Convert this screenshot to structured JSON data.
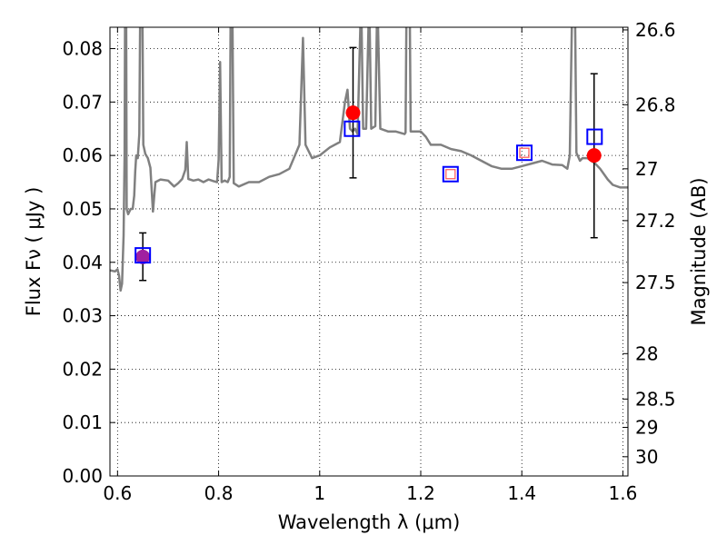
{
  "chart_data": {
    "type": "scatter",
    "xlabel": "Wavelength  λ (μm)",
    "ylabel": "Flux  Fν  ( μJy )",
    "ylabel_right": "Magnitude (AB)",
    "xlim": [
      0.585,
      1.61
    ],
    "ylim": [
      0.0,
      0.084
    ],
    "grid": true,
    "x_ticks": [
      {
        "value": 0.6,
        "label": "0.6"
      },
      {
        "value": 0.8,
        "label": "0.8"
      },
      {
        "value": 1.0,
        "label": "1"
      },
      {
        "value": 1.2,
        "label": "1.2"
      },
      {
        "value": 1.4,
        "label": "1.4"
      },
      {
        "value": 1.6,
        "label": "1.6"
      }
    ],
    "y_ticks": [
      {
        "value": 0.0,
        "label": "0.00"
      },
      {
        "value": 0.01,
        "label": "0.01"
      },
      {
        "value": 0.02,
        "label": "0.02"
      },
      {
        "value": 0.03,
        "label": "0.03"
      },
      {
        "value": 0.04,
        "label": "0.04"
      },
      {
        "value": 0.05,
        "label": "0.05"
      },
      {
        "value": 0.06,
        "label": "0.06"
      },
      {
        "value": 0.07,
        "label": "0.07"
      },
      {
        "value": 0.08,
        "label": "0.08"
      }
    ],
    "right_ticks": [
      {
        "flux": 0.0835,
        "label": "26.6"
      },
      {
        "flux": 0.0695,
        "label": "26.8"
      },
      {
        "flux": 0.0575,
        "label": "27"
      },
      {
        "flux": 0.0478,
        "label": "27.2"
      },
      {
        "flux": 0.0362,
        "label": "27.5"
      },
      {
        "flux": 0.0229,
        "label": "28"
      },
      {
        "flux": 0.0144,
        "label": "28.5"
      },
      {
        "flux": 0.0091,
        "label": "29"
      },
      {
        "flux": 0.0036,
        "label": "30"
      }
    ],
    "series": [
      {
        "kind": "line",
        "color": "#808080",
        "points": [
          [
            0.585,
            0.0385
          ],
          [
            0.595,
            0.0383
          ],
          [
            0.6,
            0.0387
          ],
          [
            0.603,
            0.0375
          ],
          [
            0.606,
            0.0347
          ],
          [
            0.609,
            0.036
          ],
          [
            0.612,
            0.045
          ],
          [
            0.614,
            0.06
          ],
          [
            0.615,
            0.09
          ],
          [
            0.617,
            0.09
          ],
          [
            0.618,
            0.05
          ],
          [
            0.621,
            0.049
          ],
          [
            0.626,
            0.05
          ],
          [
            0.63,
            0.05
          ],
          [
            0.633,
            0.0525
          ],
          [
            0.635,
            0.057
          ],
          [
            0.637,
            0.06
          ],
          [
            0.64,
            0.0595
          ],
          [
            0.643,
            0.064
          ],
          [
            0.645,
            0.09
          ],
          [
            0.649,
            0.09
          ],
          [
            0.651,
            0.062
          ],
          [
            0.655,
            0.0603
          ],
          [
            0.66,
            0.0595
          ],
          [
            0.665,
            0.0577
          ],
          [
            0.67,
            0.0495
          ],
          [
            0.675,
            0.055
          ],
          [
            0.685,
            0.0555
          ],
          [
            0.7,
            0.0553
          ],
          [
            0.712,
            0.0542
          ],
          [
            0.72,
            0.0548
          ],
          [
            0.728,
            0.0556
          ],
          [
            0.734,
            0.0573
          ],
          [
            0.737,
            0.0625
          ],
          [
            0.74,
            0.0556
          ],
          [
            0.75,
            0.0553
          ],
          [
            0.76,
            0.0555
          ],
          [
            0.77,
            0.055
          ],
          [
            0.78,
            0.0555
          ],
          [
            0.79,
            0.0552
          ],
          [
            0.797,
            0.055
          ],
          [
            0.8,
            0.0592
          ],
          [
            0.803,
            0.0775
          ],
          [
            0.806,
            0.055
          ],
          [
            0.812,
            0.0553
          ],
          [
            0.818,
            0.055
          ],
          [
            0.822,
            0.056
          ],
          [
            0.824,
            0.09
          ],
          [
            0.827,
            0.09
          ],
          [
            0.83,
            0.0548
          ],
          [
            0.84,
            0.0542
          ],
          [
            0.86,
            0.055
          ],
          [
            0.88,
            0.055
          ],
          [
            0.9,
            0.056
          ],
          [
            0.92,
            0.0565
          ],
          [
            0.94,
            0.0575
          ],
          [
            0.96,
            0.062
          ],
          [
            0.967,
            0.082
          ],
          [
            0.972,
            0.062
          ],
          [
            0.985,
            0.0595
          ],
          [
            1.0,
            0.06
          ],
          [
            1.02,
            0.0615
          ],
          [
            1.04,
            0.0625
          ],
          [
            1.05,
            0.07
          ],
          [
            1.055,
            0.0723
          ],
          [
            1.06,
            0.065
          ],
          [
            1.065,
            0.0645
          ],
          [
            1.07,
            0.065
          ],
          [
            1.075,
            0.064
          ],
          [
            1.082,
            0.09
          ],
          [
            1.086,
            0.065
          ],
          [
            1.092,
            0.065
          ],
          [
            1.098,
            0.09
          ],
          [
            1.102,
            0.065
          ],
          [
            1.11,
            0.0655
          ],
          [
            1.114,
            0.09
          ],
          [
            1.12,
            0.065
          ],
          [
            1.135,
            0.0645
          ],
          [
            1.15,
            0.0645
          ],
          [
            1.168,
            0.064
          ],
          [
            1.17,
            0.0643
          ],
          [
            1.172,
            0.09
          ],
          [
            1.178,
            0.09
          ],
          [
            1.18,
            0.0645
          ],
          [
            1.19,
            0.0645
          ],
          [
            1.2,
            0.0645
          ],
          [
            1.21,
            0.0635
          ],
          [
            1.22,
            0.062
          ],
          [
            1.24,
            0.062
          ],
          [
            1.26,
            0.0612
          ],
          [
            1.28,
            0.0608
          ],
          [
            1.3,
            0.06
          ],
          [
            1.32,
            0.059
          ],
          [
            1.34,
            0.058
          ],
          [
            1.36,
            0.0575
          ],
          [
            1.38,
            0.0575
          ],
          [
            1.4,
            0.058
          ],
          [
            1.42,
            0.0585
          ],
          [
            1.44,
            0.059
          ],
          [
            1.46,
            0.0583
          ],
          [
            1.48,
            0.0582
          ],
          [
            1.49,
            0.0575
          ],
          [
            1.495,
            0.06
          ],
          [
            1.5,
            0.09
          ],
          [
            1.505,
            0.09
          ],
          [
            1.508,
            0.0605
          ],
          [
            1.515,
            0.059
          ],
          [
            1.52,
            0.0595
          ],
          [
            1.53,
            0.0595
          ],
          [
            1.545,
            0.0585
          ],
          [
            1.555,
            0.0575
          ],
          [
            1.57,
            0.0555
          ],
          [
            1.58,
            0.0545
          ],
          [
            1.595,
            0.054
          ],
          [
            1.61,
            0.054
          ]
        ]
      },
      {
        "kind": "filled-circles",
        "points": [
          {
            "x": 0.65,
            "y": 0.041,
            "color": "#a020a0"
          },
          {
            "x": 1.066,
            "y": 0.068,
            "color": "#ff0000"
          },
          {
            "x": 1.543,
            "y": 0.06,
            "color": "#ff0000"
          }
        ]
      },
      {
        "kind": "error-bars",
        "color": "#000000",
        "points": [
          {
            "x": 0.65,
            "y": 0.041,
            "low": 0.0366,
            "high": 0.0455
          },
          {
            "x": 1.066,
            "y": 0.068,
            "low": 0.0558,
            "high": 0.0802
          },
          {
            "x": 1.543,
            "y": 0.06,
            "low": 0.0446,
            "high": 0.0753
          }
        ]
      },
      {
        "kind": "open-squares",
        "color": "#0000ff",
        "points": [
          {
            "x": 0.65,
            "y": 0.0413
          },
          {
            "x": 1.064,
            "y": 0.065
          },
          {
            "x": 1.259,
            "y": 0.0565
          },
          {
            "x": 1.405,
            "y": 0.0605
          },
          {
            "x": 1.544,
            "y": 0.0635
          }
        ]
      },
      {
        "kind": "inner-squares",
        "color": "#ff5555",
        "points": [
          {
            "x": 1.259,
            "y": 0.0565
          },
          {
            "x": 1.405,
            "y": 0.0605
          }
        ]
      }
    ]
  }
}
